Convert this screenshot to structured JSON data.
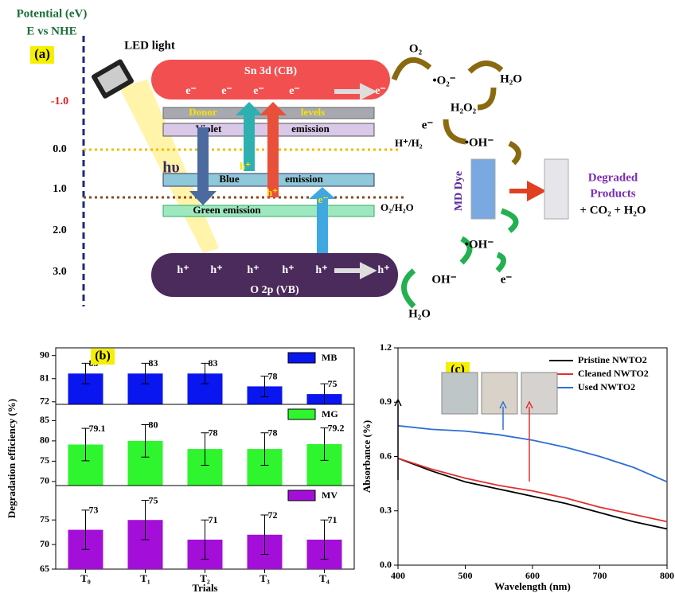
{
  "diagram": {
    "label": "(a)",
    "axis_title": [
      "Potential (eV)",
      "E vs NHE"
    ],
    "potential_levels": [
      "-1.0",
      "0.0",
      "1.0",
      "2.0",
      "3.0"
    ],
    "light_source": "LED light",
    "photon": "hυ",
    "conduction_band": "Sn 3d (CB)",
    "valence_band": "O 2p (VB)",
    "cb_electrons": [
      "e⁻",
      "e⁻",
      "e⁻",
      "e⁻",
      "e⁻"
    ],
    "vb_holes": [
      "h⁺",
      "h⁺",
      "h⁺",
      "h⁺",
      "h⁺",
      "h⁺"
    ],
    "states": {
      "donor": [
        "Donor",
        "levels"
      ],
      "violet": [
        "Violet",
        "emission"
      ],
      "blue": [
        "Blue",
        "emission"
      ],
      "green": "Green emission"
    },
    "transition_labels": [
      "h⁺",
      "h⁺",
      "e⁻"
    ],
    "redox_levels": [
      "H⁺/H₂",
      "O₂/H₂O"
    ],
    "reduction_path": [
      "O₂",
      "•O₂⁻",
      "H₂O",
      "H₂O₂",
      "e⁻",
      "•OH⁻"
    ],
    "oxidation_path": [
      "H₂O",
      "OH⁻",
      "e⁻",
      "•OH⁻"
    ],
    "dye": "MD Dye",
    "products": [
      "Degraded",
      "Products",
      "+ CO₂ + H₂O"
    ]
  },
  "chart_data": [
    {
      "type": "bar",
      "title": "(b)",
      "y_label": "Degradation efficiency (%)",
      "x_label": "Trials",
      "categories": [
        "T₀",
        "T₁",
        "T₂",
        "T₃",
        "T₄"
      ],
      "panels": [
        {
          "name": "MB",
          "color": "#0a16f0",
          "values": [
            83,
            83,
            83,
            78,
            75
          ],
          "errors": [
            4,
            4,
            4,
            4,
            4
          ],
          "ylim": [
            71,
            93
          ],
          "yticks": [
            72,
            81,
            90
          ]
        },
        {
          "name": "MG",
          "color": "#2ef52e",
          "values": [
            79.1,
            80,
            78,
            78,
            79.2
          ],
          "errors": [
            4,
            4,
            4,
            4,
            4
          ],
          "ylim": [
            69,
            89
          ],
          "yticks": [
            70,
            75,
            80,
            85
          ]
        },
        {
          "name": "MV",
          "color": "#a30fd8",
          "values": [
            73,
            75,
            71,
            72,
            71
          ],
          "errors": [
            4,
            4,
            4,
            4,
            4
          ],
          "ylim": [
            65,
            82
          ],
          "yticks": [
            65,
            70,
            75
          ]
        }
      ]
    },
    {
      "type": "line",
      "title": "(c)",
      "x_label": "Wavelength (nm)",
      "y_label": "Absorbance (%)",
      "x": [
        400,
        450,
        500,
        550,
        600,
        650,
        700,
        750,
        800
      ],
      "series": [
        {
          "name": "Pristine NWTO2",
          "color": "#000000",
          "values": [
            0.59,
            0.52,
            0.46,
            0.42,
            0.38,
            0.34,
            0.29,
            0.24,
            0.2
          ]
        },
        {
          "name": "Cleaned NWTO2",
          "color": "#e03030",
          "values": [
            0.59,
            0.53,
            0.48,
            0.44,
            0.41,
            0.37,
            0.32,
            0.28,
            0.24
          ]
        },
        {
          "name": "Used NWTO2",
          "color": "#2f6fd0",
          "values": [
            0.77,
            0.75,
            0.74,
            0.72,
            0.69,
            0.65,
            0.6,
            0.54,
            0.46
          ]
        }
      ],
      "xlim": [
        400,
        800
      ],
      "ylim": [
        0,
        1.2
      ],
      "xticks": [
        400,
        500,
        600,
        700,
        800
      ],
      "yticks": [
        {
          "value": 0,
          "label": "0.0"
        },
        {
          "value": 0.3,
          "label": "0.3"
        },
        {
          "value": 0.6,
          "label": "0.6"
        },
        {
          "value": 0.9,
          "label": "0.9"
        },
        {
          "value": 1.2,
          "label": "1.2"
        }
      ],
      "legend": "upper right"
    }
  ]
}
